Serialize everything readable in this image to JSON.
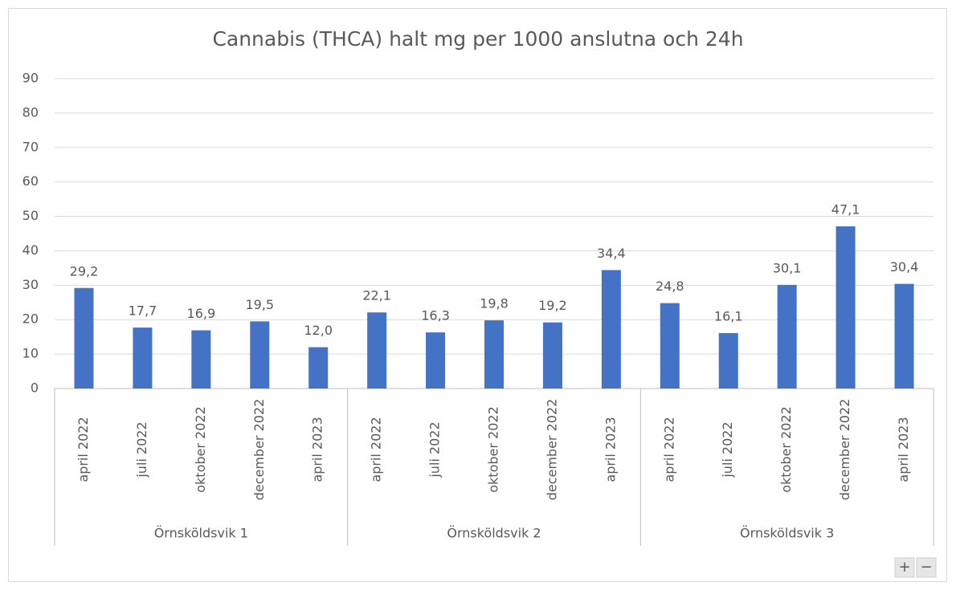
{
  "chart_data": {
    "type": "bar",
    "title": "Cannabis (THCA) halt mg per 1000 anslutna och 24h",
    "color": "#4472c4",
    "ylim": [
      0,
      90
    ],
    "yticks": [
      0,
      10,
      20,
      30,
      40,
      50,
      60,
      70,
      80,
      90
    ],
    "grid": true,
    "groups": [
      {
        "label": "Örnsköldsvik 1",
        "categories": [
          "april 2022",
          "juli 2022",
          "oktober 2022",
          "december 2022",
          "april 2023"
        ],
        "values": [
          29.2,
          17.7,
          16.9,
          19.5,
          12.0
        ],
        "value_labels": [
          "29,2",
          "17,7",
          "16,9",
          "19,5",
          "12,0"
        ]
      },
      {
        "label": "Örnsköldsvik 2",
        "categories": [
          "april 2022",
          "juli 2022",
          "oktober 2022",
          "december 2022",
          "april 2023"
        ],
        "values": [
          22.1,
          16.3,
          19.8,
          19.2,
          34.4
        ],
        "value_labels": [
          "22,1",
          "16,3",
          "19,8",
          "19,2",
          "34,4"
        ]
      },
      {
        "label": "Örnsköldsvik 3",
        "categories": [
          "april 2022",
          "juli 2022",
          "oktober 2022",
          "december 2022",
          "april 2023"
        ],
        "values": [
          24.8,
          16.1,
          30.1,
          47.1,
          30.4
        ],
        "value_labels": [
          "24,8",
          "16,1",
          "30,1",
          "47,1",
          "30,4"
        ]
      }
    ]
  },
  "controls": [
    "+",
    "−"
  ]
}
